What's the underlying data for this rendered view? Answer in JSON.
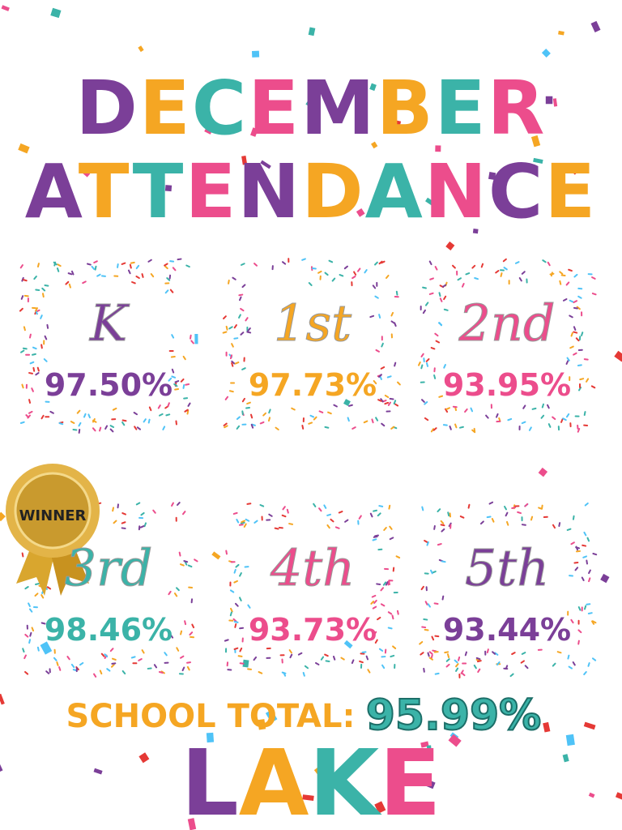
{
  "header": {
    "line1": "DECEMBER",
    "line2": "ATTENDANCE"
  },
  "grades": [
    {
      "label": "K",
      "percent": "97.50%",
      "color": "#7b3f98"
    },
    {
      "label": "1st",
      "percent": "97.73%",
      "color": "#f5a623"
    },
    {
      "label": "2nd",
      "percent": "93.95%",
      "color": "#ec4d8c"
    },
    {
      "label": "3rd",
      "percent": "98.46%",
      "color": "#3bb3a8"
    },
    {
      "label": "4th",
      "percent": "93.73%",
      "color": "#ec4d8c"
    },
    {
      "label": "5th",
      "percent": "93.44%",
      "color": "#7b3f98"
    }
  ],
  "badge": "WINNER",
  "total": {
    "label": "SCHOOL TOTAL:",
    "value": "95.99%"
  },
  "school": "LAKE"
}
